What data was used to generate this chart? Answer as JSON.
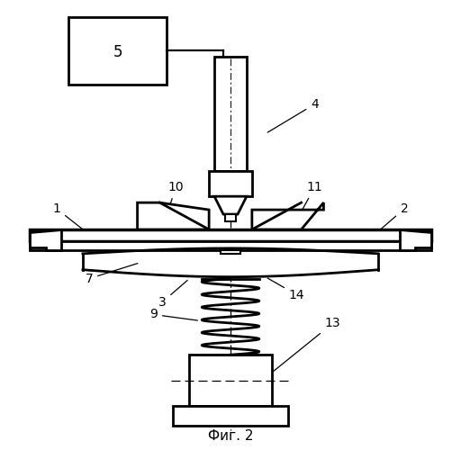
{
  "title": "Фиг. 2",
  "background_color": "#ffffff",
  "line_color": "#000000"
}
